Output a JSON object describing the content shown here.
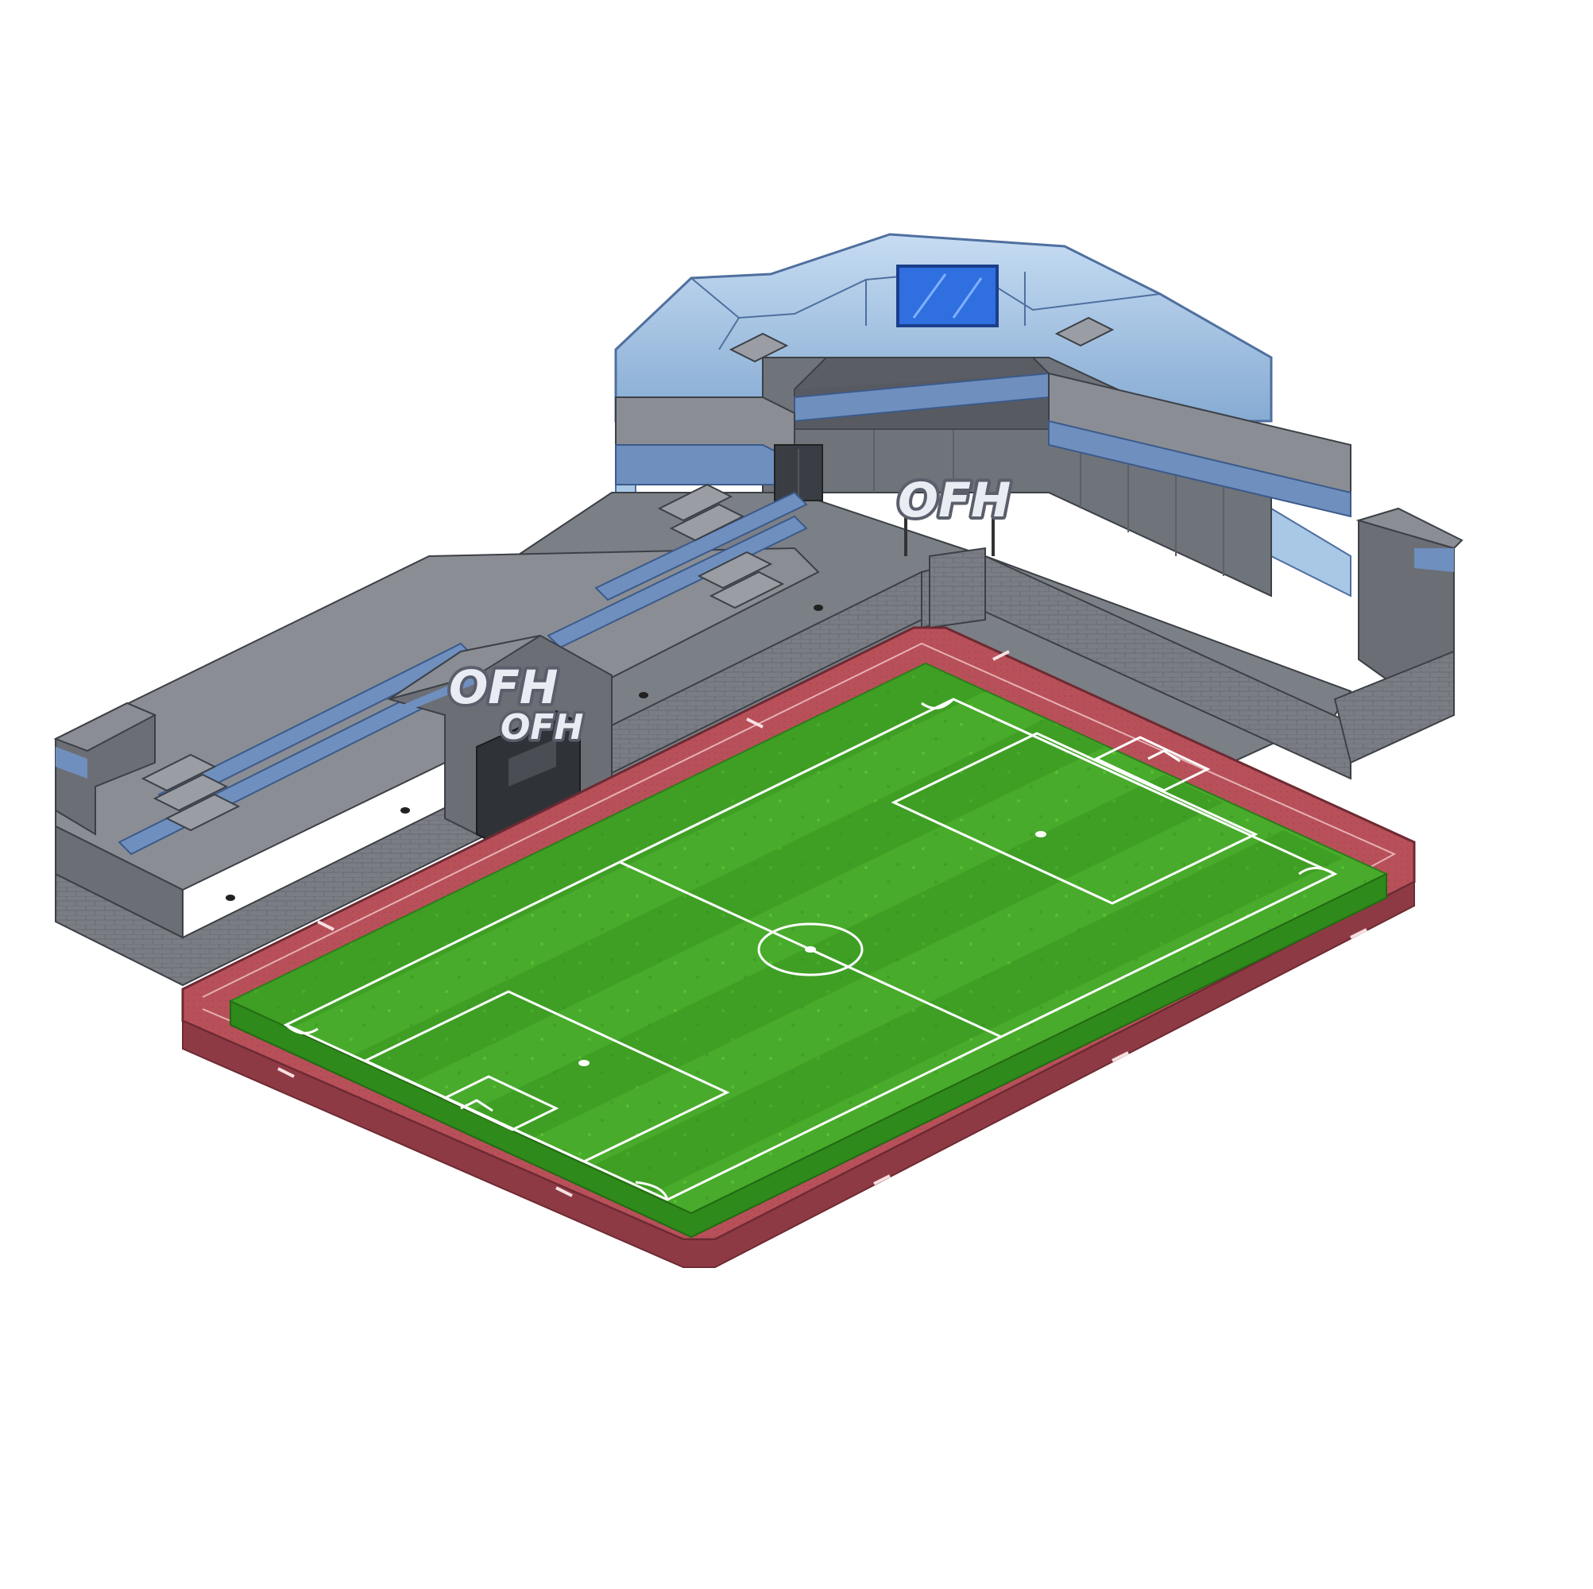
{
  "scene": {
    "signs": {
      "main": "OFH",
      "upper": "OFH",
      "lower": "OFH"
    },
    "colors": {
      "background": "#ffffff",
      "concrete_top": "#8a8e94",
      "concrete_side": "#6b6f75",
      "concrete_dark": "#55595f",
      "concrete_floor": "#7b7f86",
      "blue_trim": "#6f8fbf",
      "blue_trim_dark": "#4f6f9f",
      "glass": "#a9c8e6",
      "glass_dark": "#7ea6cf",
      "screen": "#2f6fe0",
      "brick": "#7a7e84",
      "track": "#b8505a",
      "track_dark": "#8e3a44",
      "grass_light": "#4fb52f",
      "grass_dark": "#3c9a25",
      "pitch_line": "#ffffff",
      "sign_fill": "#e9edf3",
      "sign_stroke": "#5a5f6b"
    },
    "icons": [
      "scoreboard-screen-icon",
      "goal-icon",
      "stairs-icon",
      "tunnel-door-icon",
      "speaker-icon"
    ]
  }
}
